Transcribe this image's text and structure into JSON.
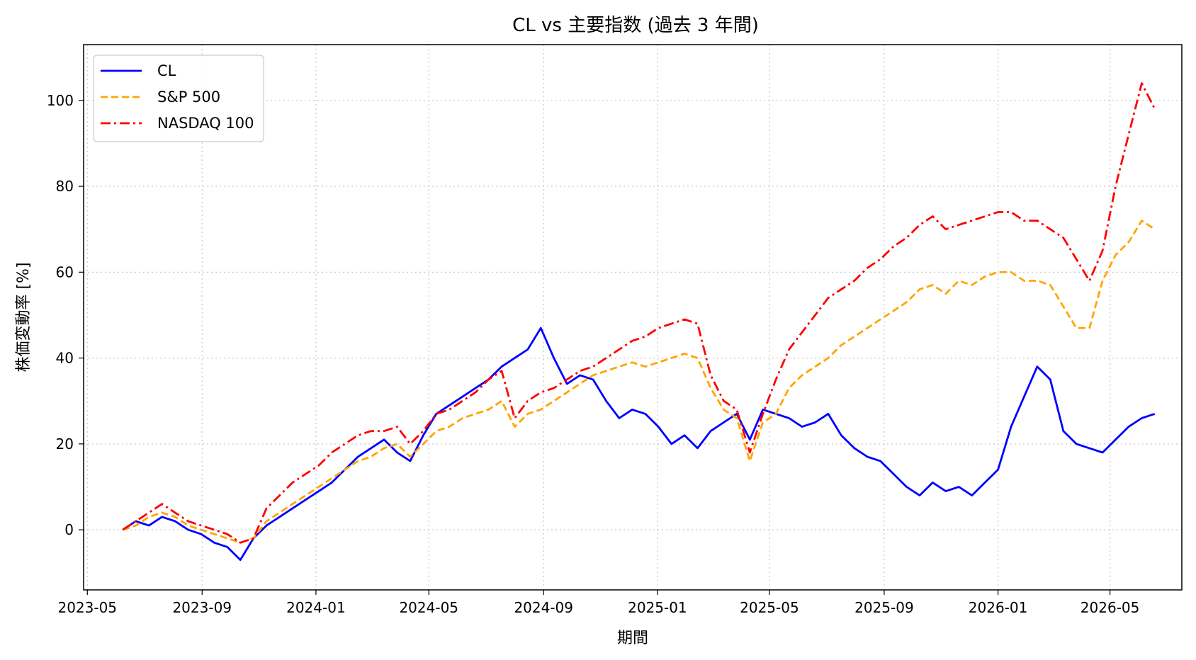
{
  "chart_data": {
    "type": "line",
    "title": "CL vs 主要指数 (過去 3 年間)",
    "xlabel": "期間",
    "ylabel": "株価変動率 [%]",
    "xlim": [
      "2023-04-27",
      "2026-07-17"
    ],
    "ylim": [
      -14,
      113
    ],
    "x_ticks": [
      "2023-05",
      "2023-09",
      "2024-01",
      "2024-05",
      "2024-09",
      "2025-01",
      "2025-05",
      "2025-09",
      "2026-01",
      "2026-05"
    ],
    "y_ticks": [
      0,
      20,
      40,
      60,
      80,
      100
    ],
    "grid": true,
    "legend_position": "top-left",
    "dates": [
      "2023-06-08",
      "2023-06-22",
      "2023-07-06",
      "2023-07-20",
      "2023-08-03",
      "2023-08-17",
      "2023-08-31",
      "2023-09-14",
      "2023-09-28",
      "2023-10-12",
      "2023-10-26",
      "2023-11-09",
      "2023-11-23",
      "2023-12-07",
      "2023-12-21",
      "2024-01-04",
      "2024-01-18",
      "2024-02-01",
      "2024-02-15",
      "2024-02-29",
      "2024-03-14",
      "2024-03-28",
      "2024-04-11",
      "2024-04-25",
      "2024-05-09",
      "2024-05-23",
      "2024-06-06",
      "2024-06-20",
      "2024-07-04",
      "2024-07-18",
      "2024-08-01",
      "2024-08-15",
      "2024-08-29",
      "2024-09-12",
      "2024-09-26",
      "2024-10-10",
      "2024-10-24",
      "2024-11-07",
      "2024-11-21",
      "2024-12-05",
      "2024-12-19",
      "2025-01-02",
      "2025-01-16",
      "2025-01-30",
      "2025-02-13",
      "2025-02-27",
      "2025-03-13",
      "2025-03-27",
      "2025-04-10",
      "2025-04-24",
      "2025-05-08",
      "2025-05-22",
      "2025-06-05",
      "2025-06-19",
      "2025-07-03",
      "2025-07-17",
      "2025-07-31",
      "2025-08-14",
      "2025-08-28",
      "2025-09-11",
      "2025-09-25",
      "2025-10-09",
      "2025-10-23",
      "2025-11-06",
      "2025-11-20",
      "2025-12-04",
      "2025-12-18",
      "2026-01-01",
      "2026-01-15",
      "2026-01-29",
      "2026-02-12",
      "2026-02-26",
      "2026-03-12",
      "2026-03-26",
      "2026-04-09",
      "2026-04-23",
      "2026-05-07",
      "2026-05-21",
      "2026-06-04",
      "2026-06-18"
    ],
    "series": [
      {
        "name": "CL",
        "color": "#0000ff",
        "dash": "solid",
        "values": [
          0,
          2,
          1,
          3,
          2,
          0,
          -1,
          -3,
          -4,
          -7,
          -2,
          1,
          3,
          5,
          7,
          9,
          11,
          14,
          17,
          19,
          21,
          18,
          16,
          22,
          27,
          29,
          31,
          33,
          35,
          38,
          40,
          42,
          47,
          40,
          34,
          36,
          35,
          30,
          26,
          28,
          27,
          24,
          20,
          22,
          19,
          23,
          25,
          27,
          21,
          28,
          27,
          26,
          24,
          25,
          27,
          22,
          19,
          17,
          16,
          13,
          10,
          8,
          11,
          9,
          10,
          8,
          11,
          14,
          24,
          31,
          38,
          35,
          23,
          20,
          19,
          18,
          21,
          24,
          26,
          27
        ]
      },
      {
        "name": "S&P 500",
        "color": "#ffa500",
        "dash": "dashed",
        "values": [
          0,
          1,
          3,
          4,
          3,
          1,
          0,
          -1,
          -2,
          -3,
          -2,
          2,
          4,
          6,
          8,
          10,
          12,
          14,
          16,
          17,
          19,
          20,
          17,
          20,
          23,
          24,
          26,
          27,
          28,
          30,
          24,
          27,
          28,
          30,
          32,
          34,
          36,
          37,
          38,
          39,
          38,
          39,
          40,
          41,
          40,
          33,
          28,
          26,
          16,
          25,
          27,
          33,
          36,
          38,
          40,
          43,
          45,
          47,
          49,
          51,
          53,
          56,
          57,
          55,
          58,
          57,
          59,
          60,
          60,
          58,
          58,
          57,
          52,
          47,
          47,
          58,
          64,
          67,
          72,
          70
        ]
      },
      {
        "name": "NASDAQ 100",
        "color": "#ff0000",
        "dash": "dashdot",
        "values": [
          0,
          2,
          4,
          6,
          4,
          2,
          1,
          0,
          -1,
          -3,
          -2,
          5,
          8,
          11,
          13,
          15,
          18,
          20,
          22,
          23,
          23,
          24,
          20,
          23,
          27,
          28,
          30,
          32,
          35,
          37,
          26,
          30,
          32,
          33,
          35,
          37,
          38,
          40,
          42,
          44,
          45,
          47,
          48,
          49,
          48,
          36,
          30,
          28,
          18,
          27,
          35,
          42,
          46,
          50,
          54,
          56,
          58,
          61,
          63,
          66,
          68,
          71,
          73,
          70,
          71,
          72,
          73,
          74,
          74,
          72,
          72,
          70,
          68,
          63,
          58,
          65,
          80,
          92,
          104,
          98
        ]
      }
    ]
  }
}
